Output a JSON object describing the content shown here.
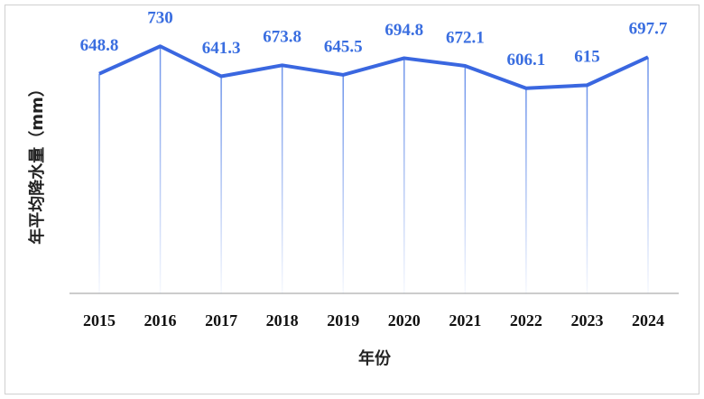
{
  "chart_data": {
    "type": "line",
    "x_label": "年份",
    "y_label": "年平均降水量（mm）",
    "categories": [
      "2015",
      "2016",
      "2017",
      "2018",
      "2019",
      "2020",
      "2021",
      "2022",
      "2023",
      "2024"
    ],
    "values": [
      648.8,
      730,
      641.3,
      673.8,
      645.5,
      694.8,
      672.1,
      606.1,
      615,
      697.7
    ],
    "color": "#3a67e0",
    "ylim": [
      0,
      800
    ]
  }
}
